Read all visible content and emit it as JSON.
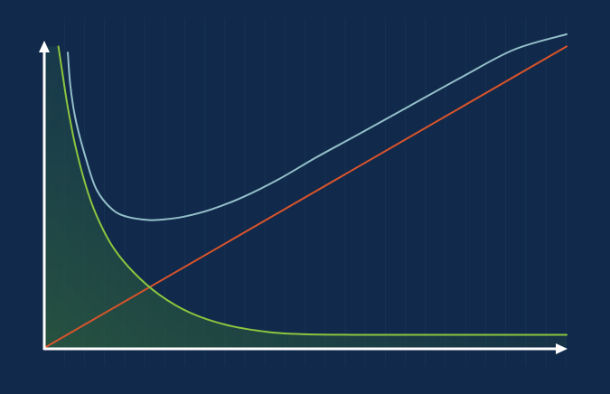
{
  "colors": {
    "background": "#11294a",
    "axis": "#ffffff",
    "grid": "#1a3a5e",
    "series_total": "#93bfc9",
    "series_linear": "#d9542b",
    "series_decay": "#8cc63e",
    "fill_top": "#1f4a4d",
    "fill_bottom": "#2b5a3e"
  },
  "chart_data": {
    "type": "line",
    "title": "",
    "xlabel": "",
    "ylabel": "",
    "xlim": [
      0,
      10
    ],
    "ylim": [
      0,
      10
    ],
    "grid": true,
    "legend": "none",
    "series": [
      {
        "key": "total",
        "x": [
          0.45,
          0.5,
          0.6,
          0.8,
          1.0,
          1.3,
          1.6,
          2.0,
          2.3,
          2.7,
          3.2,
          3.8,
          4.5,
          5.2,
          6.0,
          7.0,
          8.0,
          9.0,
          10.0
        ],
        "y": [
          9.7,
          8.6,
          7.5,
          6.2,
          5.2,
          4.55,
          4.3,
          4.2,
          4.22,
          4.32,
          4.55,
          4.95,
          5.55,
          6.25,
          7.0,
          7.95,
          8.9,
          9.8,
          10.3
        ]
      },
      {
        "key": "linear",
        "x": [
          0,
          10
        ],
        "y": [
          0,
          9.9
        ]
      },
      {
        "key": "decay",
        "x": [
          0.27,
          0.35,
          0.45,
          0.6,
          0.8,
          1.0,
          1.3,
          1.7,
          2.2,
          2.8,
          3.5,
          4.3,
          5.0,
          6.0,
          7.0,
          8.0,
          9.0,
          10.0
        ],
        "y": [
          9.9,
          9.0,
          7.9,
          6.6,
          5.3,
          4.35,
          3.35,
          2.5,
          1.75,
          1.15,
          0.75,
          0.52,
          0.45,
          0.43,
          0.43,
          0.43,
          0.43,
          0.43
        ]
      }
    ]
  }
}
